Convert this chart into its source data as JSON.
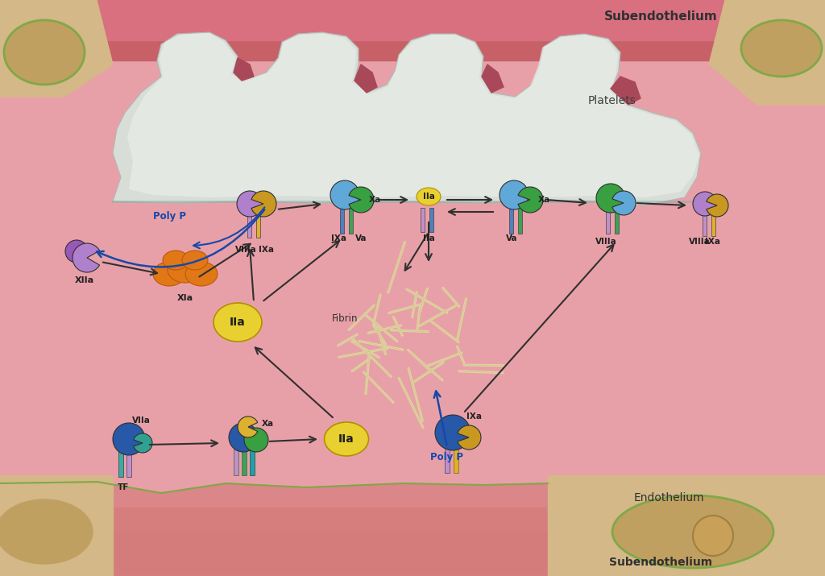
{
  "bg_main": "#E8A0A8",
  "bg_top": "#CC6070",
  "bg_bottom": "#D07880",
  "platelet_main": "#D8DDD8",
  "platelet_light": "#E8EEE8",
  "platelet_dark": "#C0C8C0",
  "platelet_teal": "#80B0A8",
  "beige": "#D4B888",
  "beige_dark": "#C0A060",
  "endo_green": "#80A848",
  "colors": {
    "orange": "#E07818",
    "yellow": "#E8D030",
    "yellow_light": "#F0E050",
    "purple": "#9858B8",
    "purple_light": "#B080CC",
    "teal_blue": "#5090B8",
    "sky_blue": "#60A8D8",
    "blue_dark": "#2858A8",
    "green": "#38A040",
    "green_dark": "#208038",
    "teal": "#30A090",
    "gold": "#C89820",
    "gold_light": "#DDB030",
    "pink_stem": "#C090C8",
    "blue_stem": "#5080C0",
    "teal_stem": "#40A8A0",
    "green_stem": "#40A058",
    "arrow_dark": "#303030",
    "arrow_blue": "#1848A8",
    "fibrin": "#E0D4A0",
    "fibrin_dark": "#C8BC80"
  },
  "labels": {
    "subendothelium_top": "Subendothelium",
    "platelets": "Platelets",
    "XIIa": "XIIa",
    "XIa": "XIa",
    "VIIIa_L": "VIIIa",
    "IXa_L": "IXa",
    "IXa_Va": "IXa",
    "Va_L": "Va",
    "Xa_L": "Xa",
    "IIa_mid": "IIa",
    "Va_R": "Va",
    "Xa_R": "Xa",
    "VIIIa_R": "VIIIa",
    "IXa_R": "IXa",
    "IIa_float": "IIa",
    "Fibrin": "Fibrin",
    "Poly_P_top": "Poly P",
    "Poly_P_bot": "Poly P",
    "VIIa": "VIIa",
    "TF": "TF",
    "Xa_endo": "Xa",
    "IIa_endo": "IIa",
    "IXa_endo": "IXa",
    "Endothelium": "Endothelium",
    "Subendothelium_bot": "Subendothelium"
  }
}
